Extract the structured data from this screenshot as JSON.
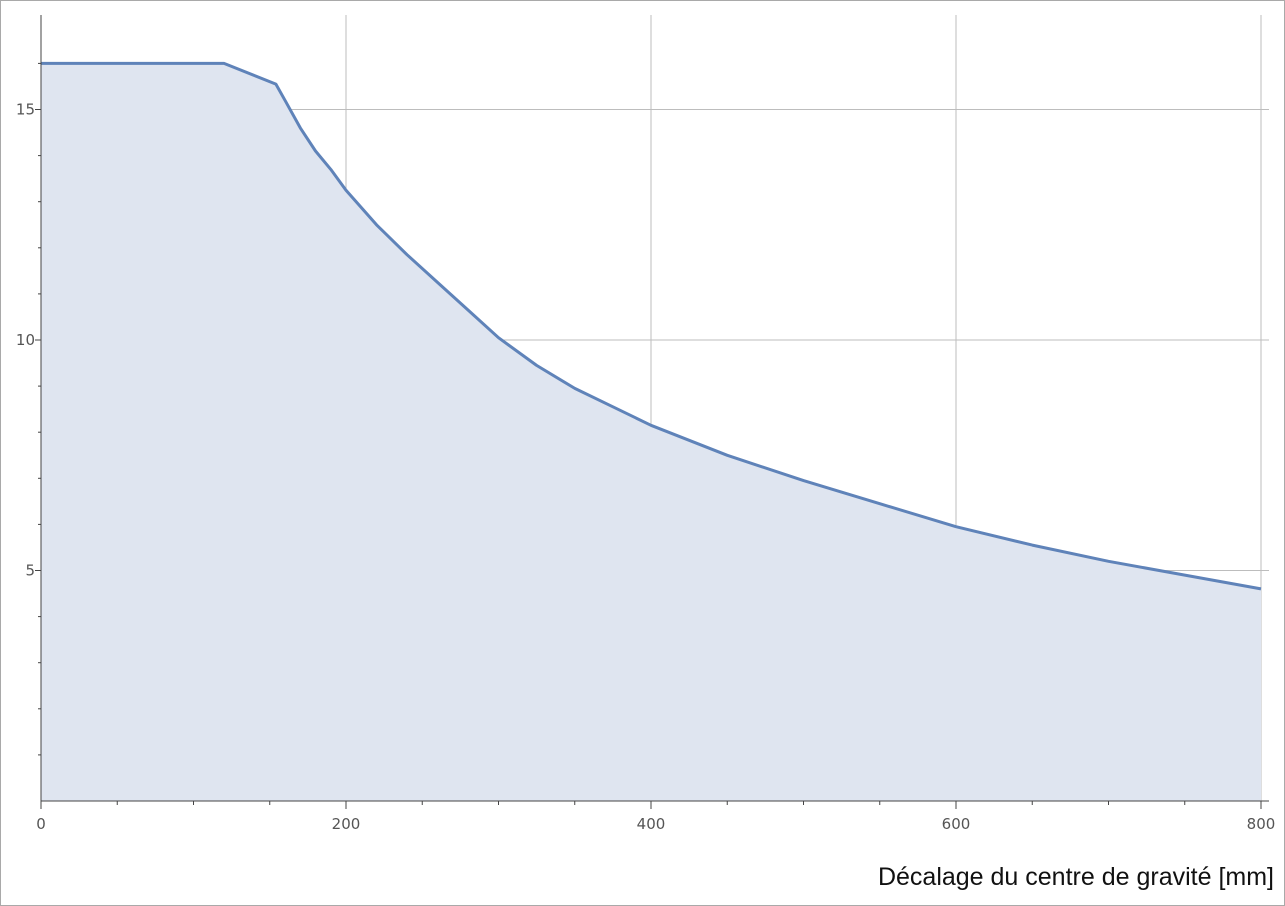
{
  "chart_data": {
    "type": "area",
    "title": "",
    "xlabel": "Décalage du centre de gravité [mm]",
    "ylabel": "",
    "xlim": [
      0,
      800
    ],
    "ylim": [
      0,
      16.5
    ],
    "grid": true,
    "legend": "none",
    "colors": {
      "line": "#5f83b9",
      "fill": "#dfe5f0",
      "grid": "#bdbdbd",
      "axis": "#444444",
      "tick_text": "#555555"
    },
    "x_ticks": [
      {
        "value": 0,
        "label": "0"
      },
      {
        "value": 200,
        "label": "200"
      },
      {
        "value": 400,
        "label": "400"
      },
      {
        "value": 600,
        "label": "600"
      },
      {
        "value": 800,
        "label": "800"
      }
    ],
    "y_ticks": [
      {
        "value": 5,
        "label": "5"
      },
      {
        "value": 10,
        "label": "10"
      },
      {
        "value": 15,
        "label": "15"
      }
    ],
    "series": [
      {
        "x": [
          0,
          50,
          100,
          120,
          154,
          160,
          170,
          180,
          190,
          200,
          220,
          240,
          260,
          280,
          300,
          325,
          350,
          375,
          400,
          450,
          500,
          550,
          600,
          650,
          700,
          750,
          800
        ],
        "y": [
          16.0,
          16.0,
          16.0,
          16.0,
          15.55,
          15.2,
          14.6,
          14.1,
          13.7,
          13.25,
          12.5,
          11.85,
          11.25,
          10.65,
          10.05,
          9.45,
          8.95,
          8.55,
          8.15,
          7.5,
          6.95,
          6.45,
          5.95,
          5.55,
          5.2,
          4.9,
          4.6
        ]
      }
    ]
  }
}
